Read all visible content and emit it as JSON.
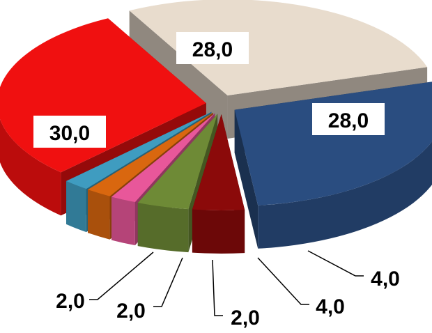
{
  "chart_data": {
    "type": "pie",
    "title": "",
    "style": "3d-exploded",
    "slices": [
      {
        "value": 28.0,
        "label": "28,0",
        "color": "#e8dccd"
      },
      {
        "value": 28.0,
        "label": "28,0",
        "color": "#2a4d80"
      },
      {
        "value": 4.0,
        "label": "4,0",
        "color": "#8b0a0a"
      },
      {
        "value": 4.0,
        "label": "4,0",
        "color": "#6e8a36"
      },
      {
        "value": 2.0,
        "label": "2,0",
        "color": "#e8579a"
      },
      {
        "value": 2.0,
        "label": "2,0",
        "color": "#d9670f"
      },
      {
        "value": 2.0,
        "label": "2,0",
        "color": "#3f9cc0"
      },
      {
        "value": 30.0,
        "label": "30,0",
        "color": "#f01010"
      }
    ]
  }
}
